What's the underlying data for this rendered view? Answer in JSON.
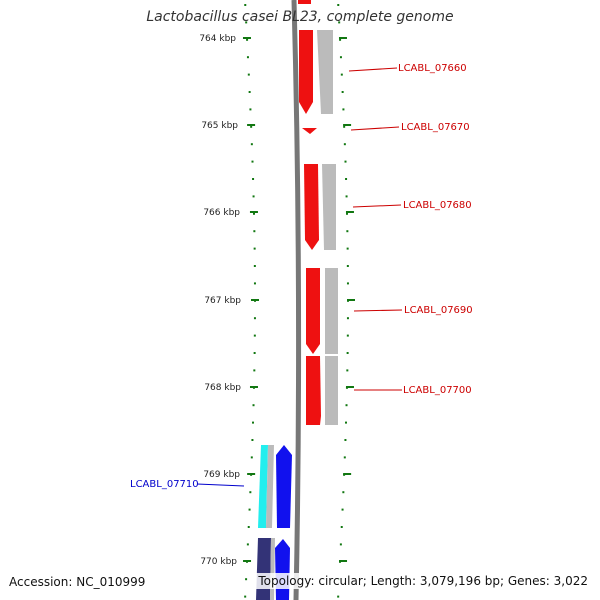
{
  "title": "Lactobacillus casei BL23, complete genome",
  "accession": "Accession: NC_010999",
  "topology": "Topology: circular; Length: 3,079,196 bp; Genes: 3,022",
  "kbp_labels": [
    "764 kbp",
    "765 kbp",
    "766 kbp",
    "767 kbp",
    "768 kbp",
    "769 kbp",
    "770 kbp"
  ],
  "genes": [
    {
      "id": "LCABL_07660",
      "strand": "forward",
      "color": "#ee1111"
    },
    {
      "id": "LCABL_07670",
      "strand": "forward",
      "color": "#ee1111"
    },
    {
      "id": "LCABL_07680",
      "strand": "forward",
      "color": "#ee1111"
    },
    {
      "id": "LCABL_07690",
      "strand": "forward",
      "color": "#ee1111"
    },
    {
      "id": "LCABL_07700",
      "strand": "forward",
      "color": "#ee1111"
    },
    {
      "id": "LCABL_07710",
      "strand": "reverse",
      "color": "#0000cc"
    }
  ],
  "colors": {
    "forward_gene": "#ee1111",
    "reverse_gene": "#1111ee",
    "cds_cyan": "#22eeee",
    "cds_navy": "#333377",
    "gray_feature": "#bbbbbb",
    "backbone": "#777777",
    "ticks": "#117711",
    "forward_label": "#cc0000",
    "reverse_label": "#0000cc"
  }
}
